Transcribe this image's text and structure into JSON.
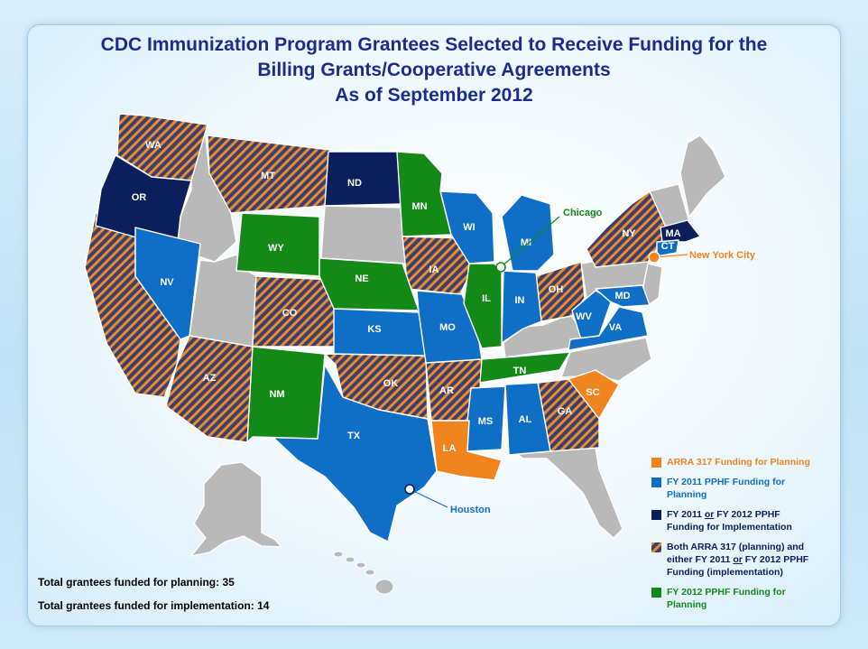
{
  "title": {
    "line1": "CDC Immunization Program Grantees Selected to Receive Funding for the",
    "line2": "Billing Grants/Cooperative Agreements",
    "line3": "As of September 2012"
  },
  "colors": {
    "arra_planning": "#f0841e",
    "fy2011_planning": "#0f6fc6",
    "implementation": "#0b1f5c",
    "both_hatch_base": "#3b3f6e",
    "both_hatch_stripe": "#e88a2e",
    "fy2012_planning": "#138a17",
    "not_funded": "#b9b9b9"
  },
  "states": {
    "WA": "WA",
    "OR": "OR",
    "MT": "MT",
    "ND": "ND",
    "MN": "MN",
    "WI": "WI",
    "MI": "MI",
    "NY": "NY",
    "MA": "MA",
    "CT": "CT",
    "NV": "NV",
    "WY": "WY",
    "NE": "NE",
    "IA": "IA",
    "IL": "IL",
    "IN": "IN",
    "OH": "OH",
    "MD": "MD",
    "CO": "CO",
    "KS": "KS",
    "MO": "MO",
    "WV": "WV",
    "VA": "VA",
    "AZ": "AZ",
    "NM": "NM",
    "OK": "OK",
    "AR": "AR",
    "TN": "TN",
    "SC": "SC",
    "GA": "GA",
    "AL": "AL",
    "MS": "MS",
    "LA": "LA",
    "TX": "TX"
  },
  "cities": {
    "chicago": "Chicago",
    "new_york_city": "New York City",
    "houston": "Houston"
  },
  "legend": {
    "arra": "ARRA 317 Funding for Planning",
    "fy2011_a": "FY 2011 PPHF Funding for",
    "fy2011_b": "Planning",
    "impl_a": "FY 2011",
    "impl_or": "or",
    "impl_b": "FY 2012 PPHF",
    "impl_c": "Funding for Implementation",
    "both_a": "Both ARRA 317 (planning) and",
    "both_b1": "either  FY 2011",
    "both_or": "or",
    "both_b2": "FY 2012 PPHF",
    "both_c": "Funding (implementation)",
    "fy2012_a": "FY 2012 PPHF Funding for",
    "fy2012_b": "Planning"
  },
  "totals": {
    "planning": "Total grantees funded for planning:  35",
    "implementation": "Total grantees funded for implementation: 14"
  }
}
